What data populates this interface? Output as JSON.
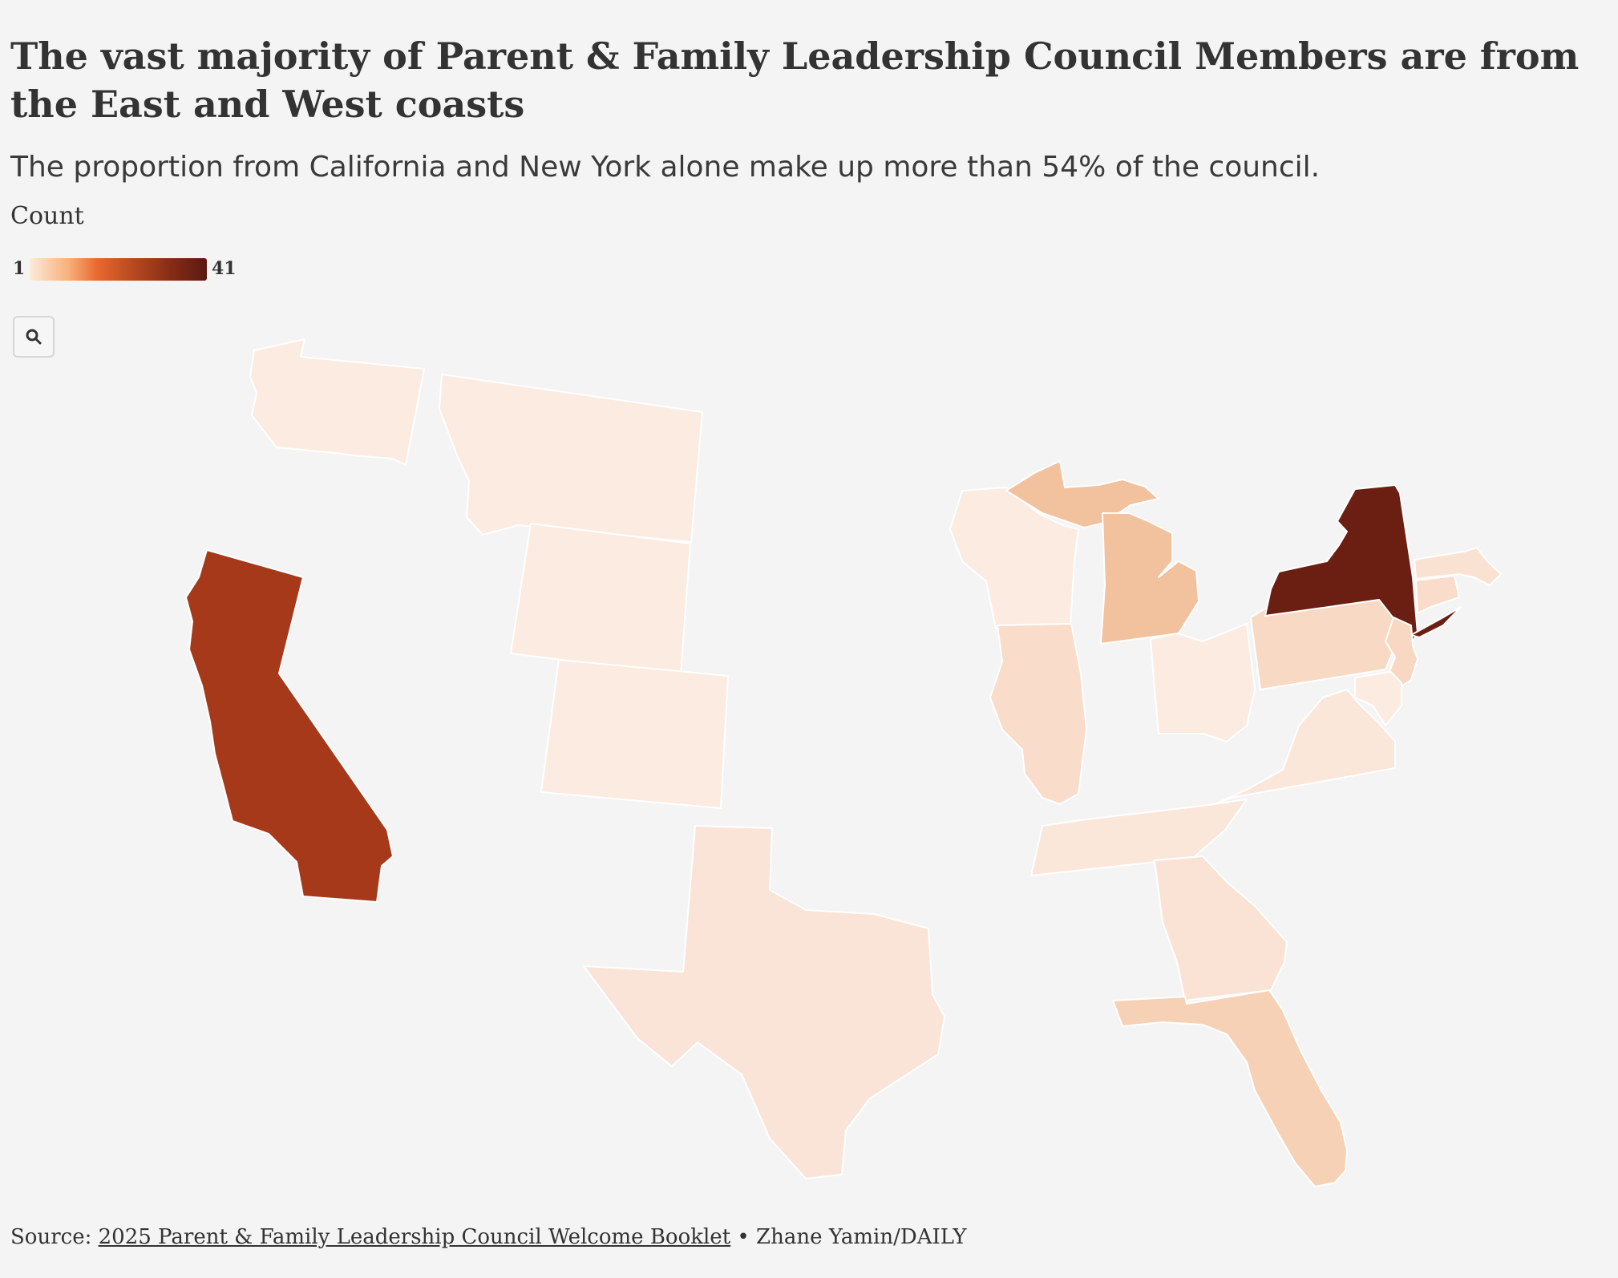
{
  "title": "The vast majority of Parent & Family Leadership Council Members are from the East and West coasts",
  "subtitle": "The proportion from California and New York alone make up more than 54% of the council.",
  "legend": {
    "title": "Count",
    "min": "1",
    "max": "41",
    "color_low": "#fdebd9",
    "color_high": "#5a1a10"
  },
  "controls": {
    "search_icon": "search-icon"
  },
  "map": {
    "type": "choropleth",
    "region": "United States",
    "variable": "Count",
    "states": [
      {
        "name": "California",
        "color": "#a5391a"
      },
      {
        "name": "New York",
        "color": "#6b1f12"
      },
      {
        "name": "Michigan",
        "color": "#f2c19d"
      },
      {
        "name": "Florida",
        "color": "#f7d1b6"
      },
      {
        "name": "Pennsylvania",
        "color": "#f8d9c4"
      },
      {
        "name": "Illinois",
        "color": "#f9dcc9"
      },
      {
        "name": "New Jersey",
        "color": "#f8d8c3"
      },
      {
        "name": "Georgia",
        "color": "#fae3d5"
      },
      {
        "name": "Texas",
        "color": "#fae4d7"
      },
      {
        "name": "Virginia",
        "color": "#fbe6da"
      },
      {
        "name": "Tennessee",
        "color": "#fbe6da"
      },
      {
        "name": "Washington",
        "color": "#fcebe0"
      },
      {
        "name": "Montana",
        "color": "#fcebe0"
      },
      {
        "name": "Wyoming",
        "color": "#fcebe0"
      },
      {
        "name": "Colorado",
        "color": "#fcebe0"
      },
      {
        "name": "Wisconsin",
        "color": "#fcebe0"
      },
      {
        "name": "Ohio",
        "color": "#fcebe0"
      },
      {
        "name": "Maryland",
        "color": "#fcebe0"
      },
      {
        "name": "Massachusetts",
        "color": "#fae2d3"
      },
      {
        "name": "Connecticut",
        "color": "#f9ddca"
      }
    ]
  },
  "source": {
    "prefix": "Source: ",
    "link_text": "2025 Parent & Family Leadership Council Welcome Booklet",
    "suffix": " • Zhane Yamin/DAILY"
  }
}
